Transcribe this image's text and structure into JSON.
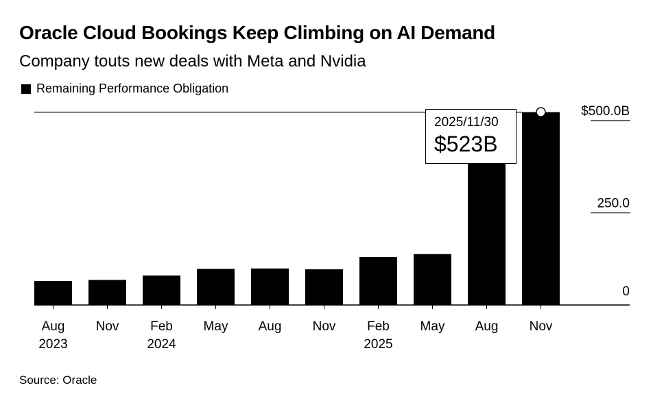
{
  "title": "Oracle Cloud Bookings Keep Climbing on AI Demand",
  "subtitle": "Company touts new deals with Meta and Nvidia",
  "source": "Source: Oracle",
  "chart_data": {
    "type": "bar",
    "categories": [
      "Aug 2023",
      "Nov 2023",
      "Feb 2024",
      "May 2024",
      "Aug 2024",
      "Nov 2024",
      "Feb 2025",
      "May 2025",
      "Aug 2025",
      "Nov 2025"
    ],
    "x_tick_labels": [
      [
        "Aug",
        "2023"
      ],
      [
        "Nov",
        ""
      ],
      [
        "Feb",
        "2024"
      ],
      [
        "May",
        ""
      ],
      [
        "Aug",
        ""
      ],
      [
        "Nov",
        ""
      ],
      [
        "Feb",
        "2025"
      ],
      [
        "May",
        ""
      ],
      [
        "Aug",
        ""
      ],
      [
        "Nov",
        ""
      ]
    ],
    "series": [
      {
        "name": "Remaining Performance Obligation",
        "values": [
          65,
          68,
          80,
          98,
          99,
          97,
          130,
          138,
          455,
          523
        ],
        "color": "#000000"
      }
    ],
    "ylim": [
      0,
      523
    ],
    "y_ticks": [
      0,
      250,
      500
    ],
    "y_tick_labels": [
      "0",
      "250.0",
      "$500.0B"
    ],
    "y_axis_side": "right",
    "legend": "top-left",
    "tooltip": {
      "date": "2025/11/30",
      "value": "$523B"
    }
  }
}
